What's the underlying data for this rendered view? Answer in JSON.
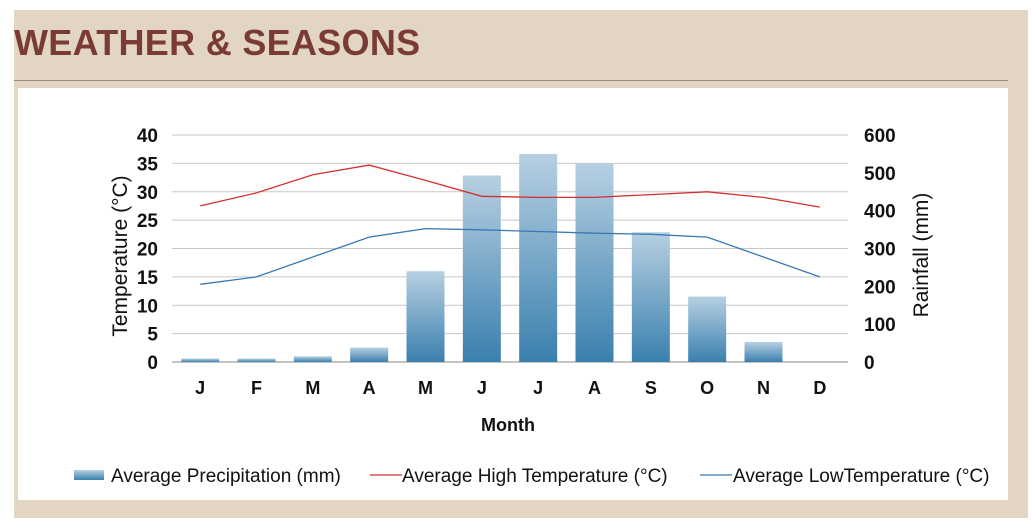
{
  "page": {
    "title": "WEATHER & SEASONS"
  },
  "chart_data": {
    "type": "bar+line",
    "categories": [
      "J",
      "F",
      "M",
      "A",
      "M",
      "J",
      "J",
      "A",
      "S",
      "O",
      "N",
      "D"
    ],
    "xlabel": "Month",
    "ylabel_left": "Temperature (°C)",
    "ylabel_right": "Rainfall (mm)",
    "ylim_left": [
      0,
      40
    ],
    "ylim_right": [
      0,
      600
    ],
    "yticks_left": [
      0,
      5,
      10,
      15,
      20,
      25,
      30,
      35,
      40
    ],
    "yticks_right": [
      0,
      100,
      200,
      300,
      400,
      500,
      600
    ],
    "grid": true,
    "legend_position": "bottom",
    "series": [
      {
        "name": "Average Precipitation (mm)",
        "type": "bar",
        "axis": "right",
        "color": "#4a8fb8",
        "values": [
          9,
          9,
          15,
          38,
          240,
          493,
          550,
          525,
          343,
          173,
          53,
          0
        ]
      },
      {
        "name": "Average High Temperature (°C)",
        "type": "line",
        "axis": "left",
        "color": "#d43030",
        "values": [
          27.5,
          29.8,
          33.0,
          34.7,
          32.0,
          29.2,
          29.0,
          29.0,
          29.5,
          30.0,
          29.0,
          27.3
        ]
      },
      {
        "name": "Average LowTemperature (°C)",
        "type": "line",
        "axis": "left",
        "color": "#3a78b4",
        "values": [
          13.7,
          15.0,
          18.5,
          22.0,
          23.5,
          23.3,
          23.0,
          22.7,
          22.5,
          22.0,
          18.5,
          15.0
        ]
      }
    ]
  }
}
